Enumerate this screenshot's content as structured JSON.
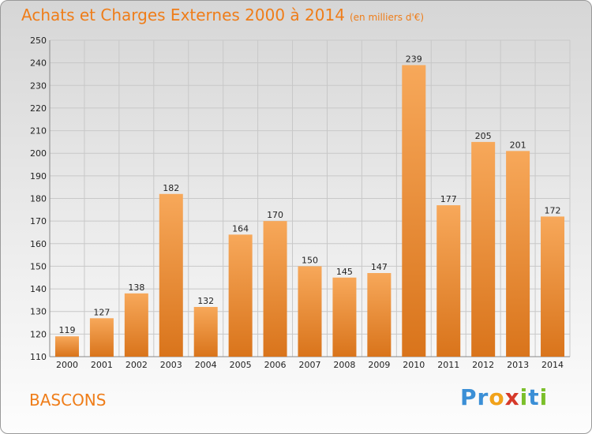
{
  "chart_data": {
    "type": "bar",
    "title": "Achats et Charges Externes 2000 à 2014",
    "subtitle": "(en milliers d'€)",
    "categories": [
      "2000",
      "2001",
      "2002",
      "2003",
      "2004",
      "2005",
      "2006",
      "2007",
      "2008",
      "2009",
      "2010",
      "2011",
      "2012",
      "2013",
      "2014"
    ],
    "values": [
      119,
      127,
      138,
      182,
      132,
      164,
      170,
      150,
      145,
      147,
      239,
      177,
      205,
      201,
      172
    ],
    "ylim": [
      110,
      250
    ],
    "yticks": [
      110,
      120,
      130,
      140,
      150,
      160,
      170,
      180,
      190,
      200,
      210,
      220,
      230,
      240,
      250
    ],
    "grid": true,
    "colors": {
      "bar_light": "#f7a85a",
      "bar_dark": "#d9741b",
      "title": "#ef7d19"
    }
  },
  "location": "BASCONS",
  "brand": {
    "letters": [
      "P",
      "r",
      "o",
      "x",
      "i",
      "t",
      "i"
    ],
    "colors": [
      "#3b8fd6",
      "#3b8fd6",
      "#f1a21a",
      "#d63a2a",
      "#7bbf2a",
      "#3b8fd6",
      "#7bbf2a"
    ]
  }
}
